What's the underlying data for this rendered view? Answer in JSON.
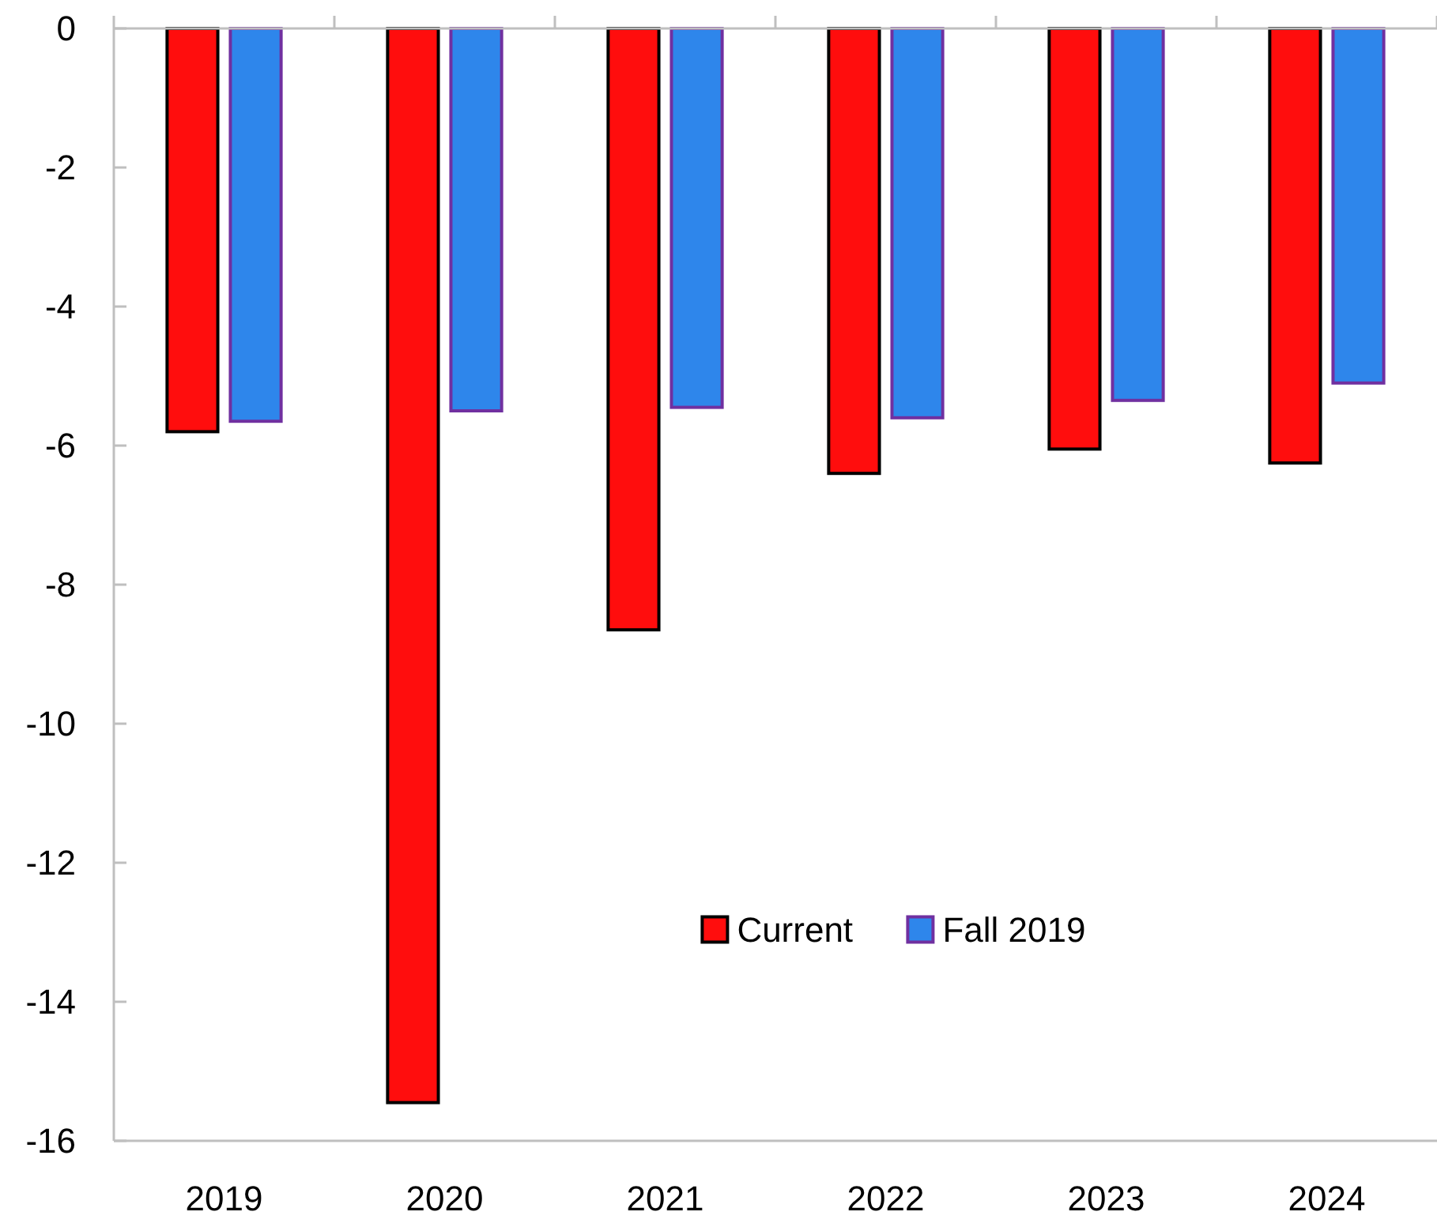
{
  "chart_data": {
    "type": "bar",
    "categories": [
      "2019",
      "2020",
      "2021",
      "2022",
      "2023",
      "2024"
    ],
    "series": [
      {
        "name": "Current",
        "color": "#ff0d0d",
        "values": [
          -5.8,
          -15.45,
          -8.65,
          -6.4,
          -6.05,
          -6.25
        ]
      },
      {
        "name": "Fall 2019",
        "color": "#2e86eb",
        "values": [
          -5.65,
          -5.5,
          -5.45,
          -5.6,
          -5.35,
          -5.1
        ]
      }
    ],
    "ylim": [
      -16,
      0
    ],
    "yticks": [
      0,
      -2,
      -4,
      -6,
      -8,
      -10,
      -12,
      -14,
      -16
    ],
    "legend": "bottom"
  }
}
